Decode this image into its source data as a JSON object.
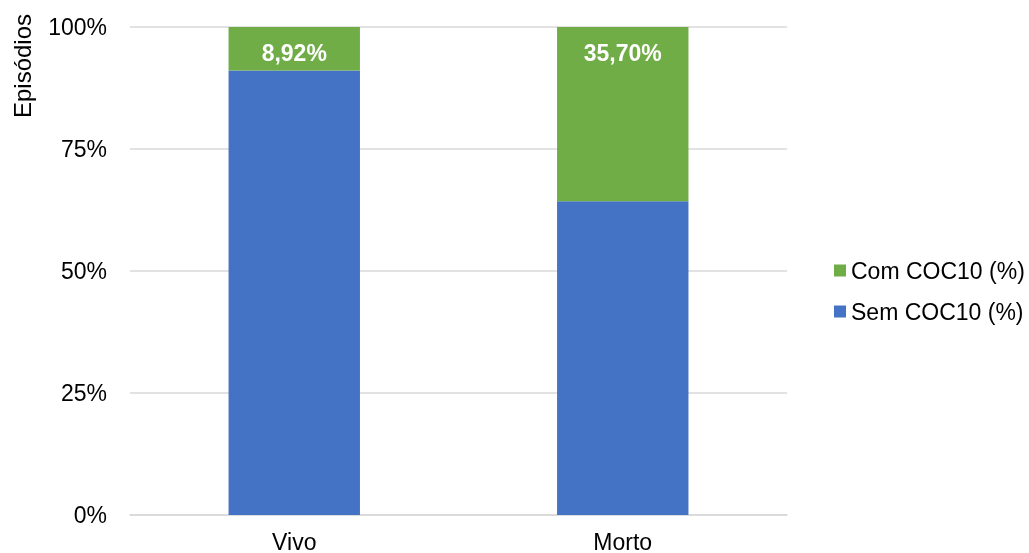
{
  "chart_data": {
    "type": "bar",
    "categories": [
      "Vivo",
      "Morto"
    ],
    "series": [
      {
        "name": "Sem COC10 (%)",
        "color": "#4472c4",
        "values": [
          91.08,
          64.3
        ]
      },
      {
        "name": "Com COC10 (%)",
        "color": "#70ad47",
        "values": [
          8.92,
          35.7
        ],
        "value_labels": [
          "8,92%",
          "35,70%"
        ]
      }
    ],
    "stacked": true,
    "ylabel": "Episódios",
    "ylim": [
      0,
      100
    ],
    "yticks": [
      {
        "value": 0,
        "label": "0%"
      },
      {
        "value": 25,
        "label": "25%"
      },
      {
        "value": 50,
        "label": "50%"
      },
      {
        "value": 75,
        "label": "75%"
      },
      {
        "value": 100,
        "label": "100%"
      }
    ],
    "grid": "y",
    "legend": "right"
  }
}
